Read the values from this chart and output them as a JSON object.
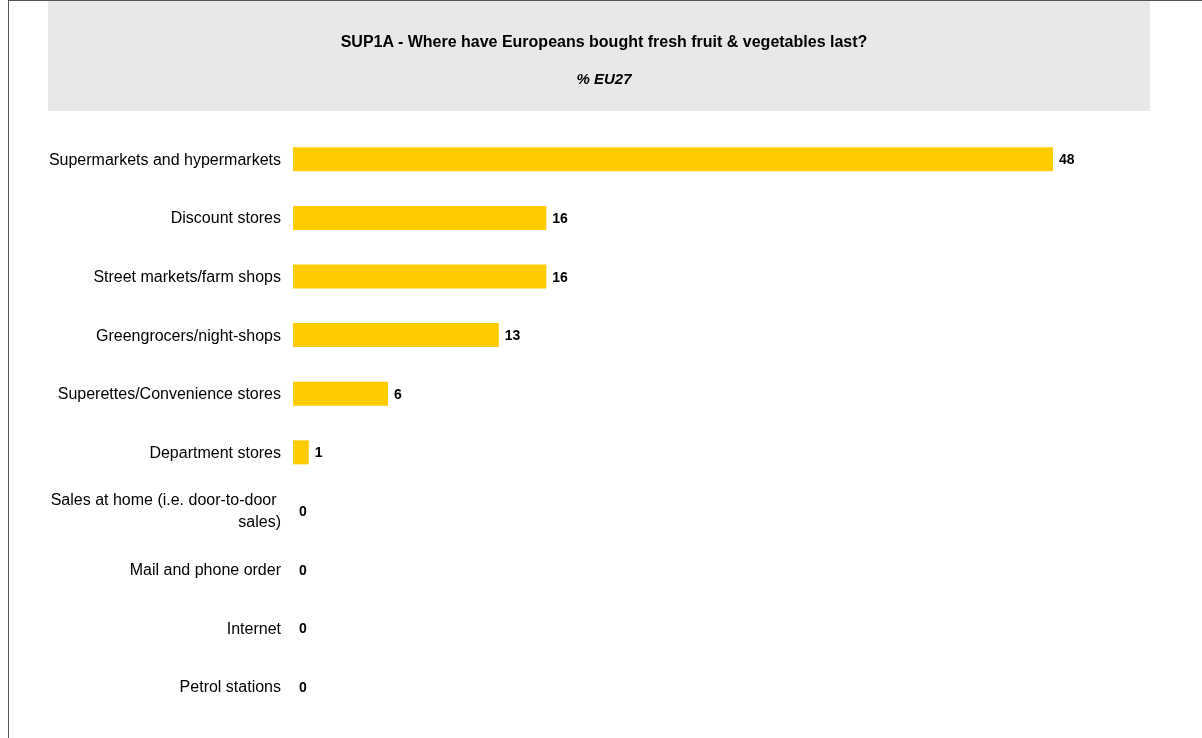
{
  "chart_data": {
    "type": "bar",
    "orientation": "horizontal",
    "title": "SUP1A - Where have Europeans bought fresh fruit & vegetables last?",
    "subtitle": "% EU27",
    "categories": [
      "Supermarkets and hypermarkets",
      "Discount stores",
      "Street markets/farm shops",
      "Greengrocers/night-shops",
      "Superettes/Convenience stores",
      "Department stores",
      "Sales at home (i.e. door-to-door sales)",
      "Mail and phone order",
      "Internet",
      "Petrol stations"
    ],
    "values": [
      48,
      16,
      16,
      13,
      6,
      1,
      0,
      0,
      0,
      0
    ],
    "color": "#ffcc00",
    "data_labels": true
  }
}
